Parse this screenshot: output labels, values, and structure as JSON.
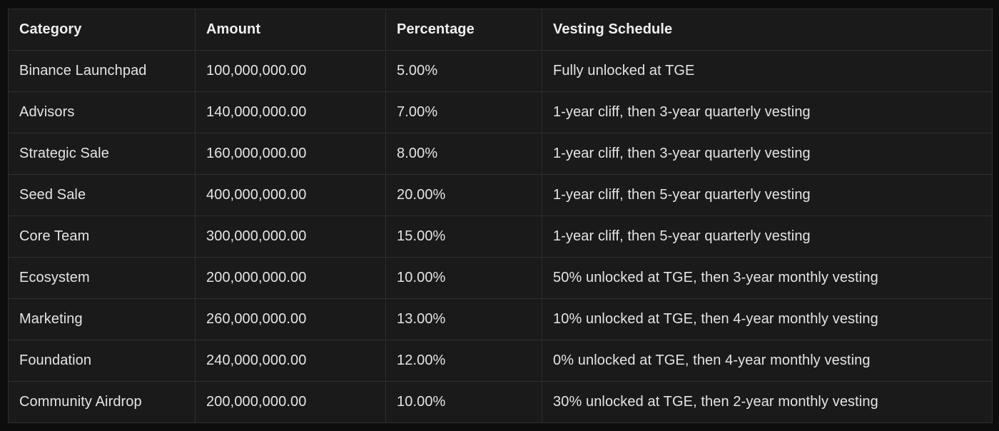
{
  "theme": {
    "page_background": "#0d0d0e",
    "cell_background": "#1a1a1b",
    "border_color": "#2e2e30",
    "text_color": "#e6e4e1",
    "header_text_color": "#f0efed"
  },
  "chart_data": {
    "type": "table",
    "title": "",
    "columns": [
      "Category",
      "Amount",
      "Percentage",
      "Vesting Schedule"
    ],
    "column_keys": [
      "category",
      "amount",
      "percentage",
      "vesting-schedule"
    ],
    "rows": [
      [
        "Binance Launchpad",
        "100,000,000.00",
        "5.00%",
        "Fully unlocked at TGE"
      ],
      [
        "Advisors",
        "140,000,000.00",
        "7.00%",
        "1-year cliff, then 3-year quarterly vesting"
      ],
      [
        "Strategic Sale",
        "160,000,000.00",
        "8.00%",
        "1-year cliff, then 3-year quarterly vesting"
      ],
      [
        "Seed Sale",
        "400,000,000.00",
        "20.00%",
        "1-year cliff, then 5-year quarterly vesting"
      ],
      [
        "Core Team",
        "300,000,000.00",
        "15.00%",
        "1-year cliff, then 5-year quarterly vesting"
      ],
      [
        "Ecosystem",
        "200,000,000.00",
        "10.00%",
        "50% unlocked at TGE, then 3-year monthly vesting"
      ],
      [
        "Marketing",
        "260,000,000.00",
        "13.00%",
        "10% unlocked at TGE, then 4-year monthly vesting"
      ],
      [
        "Foundation",
        "240,000,000.00",
        "12.00%",
        "0% unlocked at TGE, then 4-year monthly vesting"
      ],
      [
        "Community Airdrop",
        "200,000,000.00",
        "10.00%",
        "30% unlocked at TGE, then 2-year monthly vesting"
      ]
    ]
  }
}
